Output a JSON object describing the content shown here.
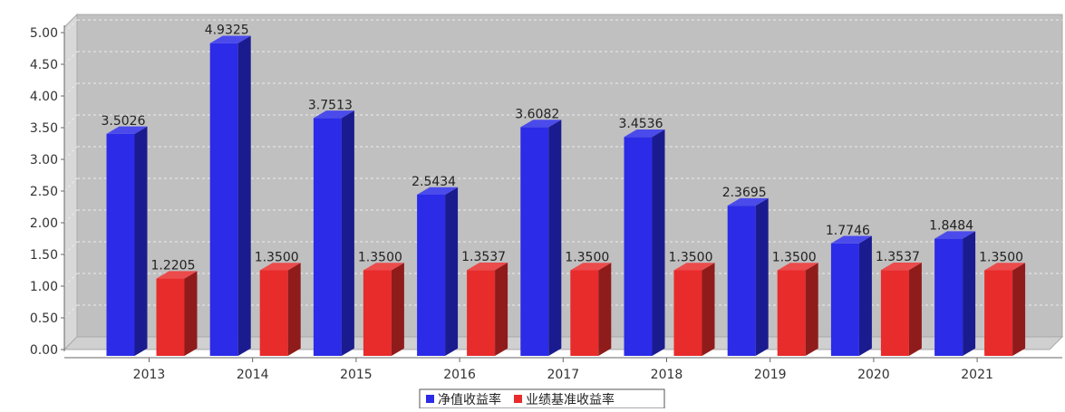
{
  "chart_data": {
    "type": "bar",
    "title": "",
    "xlabel": "",
    "ylabel": "",
    "categories": [
      "2013",
      "2014",
      "2015",
      "2016",
      "2017",
      "2018",
      "2019",
      "2020",
      "2021"
    ],
    "series": [
      {
        "name": "净值收益率",
        "color": "#2b2be8",
        "values": [
          3.5026,
          4.9325,
          3.7513,
          2.5434,
          3.6082,
          3.4536,
          2.3695,
          1.7746,
          1.8484
        ],
        "labels": [
          "3.5026",
          "4.9325",
          "3.7513",
          "2.5434",
          "3.6082",
          "3.4536",
          "2.3695",
          "1.7746",
          "1.8484"
        ]
      },
      {
        "name": "业绩基准收益率",
        "color": "#e82b2b",
        "values": [
          1.2205,
          1.35,
          1.35,
          1.3537,
          1.35,
          1.35,
          1.35,
          1.3537,
          1.35
        ],
        "labels": [
          "1.2205",
          "1.3500",
          "1.3500",
          "1.3537",
          "1.3500",
          "1.3500",
          "1.3500",
          "1.3537",
          "1.3500"
        ]
      }
    ],
    "y_ticks": [
      "0.00",
      "0.50",
      "1.00",
      "1.50",
      "2.00",
      "2.50",
      "3.00",
      "3.50",
      "4.00",
      "4.50",
      "5.00"
    ],
    "ylim": [
      0,
      5.0
    ],
    "grid": true,
    "legend": "bottom",
    "plot_background": "#c0c0c0"
  }
}
